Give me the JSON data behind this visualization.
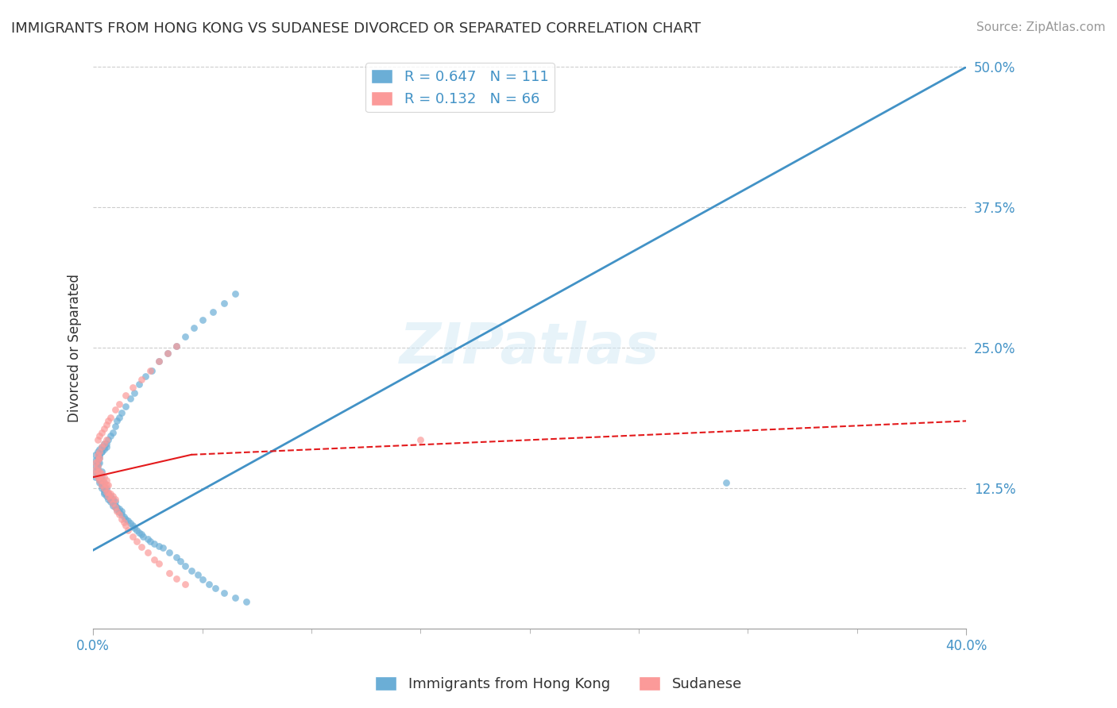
{
  "title": "IMMIGRANTS FROM HONG KONG VS SUDANESE DIVORCED OR SEPARATED CORRELATION CHART",
  "source": "Source: ZipAtlas.com",
  "xlabel": "",
  "ylabel": "Divorced or Separated",
  "xlim": [
    0.0,
    0.4
  ],
  "ylim": [
    0.0,
    0.5
  ],
  "xticks": [
    0.0,
    0.4
  ],
  "xtick_labels": [
    "0.0%",
    "40.0%"
  ],
  "ytick_positions": [
    0.0,
    0.125,
    0.25,
    0.375,
    0.5
  ],
  "ytick_labels": [
    "",
    "12.5%",
    "25.0%",
    "37.5%",
    "50.0%"
  ],
  "legend_r1": "R = 0.647",
  "legend_n1": "N = 111",
  "legend_r2": "R = 0.132",
  "legend_n2": "N = 66",
  "legend_label1": "Immigrants from Hong Kong",
  "legend_label2": "Sudanese",
  "blue_color": "#6baed6",
  "pink_color": "#fb9a99",
  "line_blue": "#4292c6",
  "line_pink": "#e31a1c",
  "watermark": "ZIPatlas",
  "blue_scatter_x": [
    0.001,
    0.001,
    0.002,
    0.002,
    0.002,
    0.003,
    0.003,
    0.003,
    0.003,
    0.003,
    0.004,
    0.004,
    0.004,
    0.004,
    0.004,
    0.004,
    0.005,
    0.005,
    0.005,
    0.005,
    0.005,
    0.006,
    0.006,
    0.006,
    0.006,
    0.007,
    0.007,
    0.007,
    0.008,
    0.008,
    0.008,
    0.009,
    0.009,
    0.009,
    0.01,
    0.01,
    0.01,
    0.011,
    0.011,
    0.012,
    0.012,
    0.013,
    0.013,
    0.014,
    0.015,
    0.016,
    0.017,
    0.018,
    0.019,
    0.02,
    0.021,
    0.022,
    0.023,
    0.025,
    0.026,
    0.028,
    0.03,
    0.032,
    0.035,
    0.038,
    0.04,
    0.042,
    0.045,
    0.048,
    0.05,
    0.053,
    0.056,
    0.06,
    0.065,
    0.07,
    0.001,
    0.001,
    0.002,
    0.002,
    0.003,
    0.003,
    0.004,
    0.004,
    0.005,
    0.005,
    0.006,
    0.007,
    0.008,
    0.009,
    0.01,
    0.011,
    0.012,
    0.013,
    0.015,
    0.017,
    0.019,
    0.021,
    0.024,
    0.027,
    0.03,
    0.034,
    0.038,
    0.042,
    0.046,
    0.05,
    0.055,
    0.06,
    0.065,
    0.001,
    0.002,
    0.003,
    0.003,
    0.004,
    0.005,
    0.006,
    0.29
  ],
  "blue_scatter_y": [
    0.14,
    0.135,
    0.138,
    0.142,
    0.145,
    0.13,
    0.132,
    0.134,
    0.136,
    0.148,
    0.125,
    0.128,
    0.13,
    0.132,
    0.135,
    0.14,
    0.12,
    0.122,
    0.124,
    0.126,
    0.13,
    0.118,
    0.12,
    0.122,
    0.125,
    0.115,
    0.118,
    0.12,
    0.113,
    0.115,
    0.118,
    0.11,
    0.112,
    0.115,
    0.108,
    0.11,
    0.113,
    0.106,
    0.108,
    0.104,
    0.107,
    0.102,
    0.105,
    0.1,
    0.098,
    0.096,
    0.094,
    0.092,
    0.09,
    0.088,
    0.086,
    0.084,
    0.082,
    0.08,
    0.078,
    0.076,
    0.074,
    0.072,
    0.068,
    0.064,
    0.06,
    0.056,
    0.052,
    0.048,
    0.044,
    0.04,
    0.036,
    0.032,
    0.028,
    0.024,
    0.15,
    0.155,
    0.152,
    0.158,
    0.155,
    0.16,
    0.158,
    0.162,
    0.16,
    0.165,
    0.162,
    0.168,
    0.172,
    0.175,
    0.18,
    0.185,
    0.188,
    0.192,
    0.198,
    0.205,
    0.21,
    0.218,
    0.225,
    0.23,
    0.238,
    0.245,
    0.252,
    0.26,
    0.268,
    0.275,
    0.282,
    0.29,
    0.298,
    0.145,
    0.148,
    0.152,
    0.155,
    0.158,
    0.162,
    0.165,
    0.13
  ],
  "pink_scatter_x": [
    0.001,
    0.001,
    0.001,
    0.002,
    0.002,
    0.002,
    0.002,
    0.003,
    0.003,
    0.003,
    0.003,
    0.004,
    0.004,
    0.004,
    0.005,
    0.005,
    0.005,
    0.006,
    0.006,
    0.006,
    0.007,
    0.007,
    0.007,
    0.008,
    0.008,
    0.009,
    0.009,
    0.01,
    0.01,
    0.011,
    0.012,
    0.013,
    0.014,
    0.015,
    0.016,
    0.018,
    0.02,
    0.022,
    0.025,
    0.028,
    0.03,
    0.035,
    0.038,
    0.042,
    0.002,
    0.003,
    0.004,
    0.005,
    0.006,
    0.007,
    0.008,
    0.01,
    0.012,
    0.015,
    0.018,
    0.022,
    0.026,
    0.03,
    0.034,
    0.038,
    0.002,
    0.003,
    0.004,
    0.005,
    0.006,
    0.15
  ],
  "pink_scatter_y": [
    0.138,
    0.142,
    0.148,
    0.135,
    0.14,
    0.145,
    0.15,
    0.132,
    0.135,
    0.14,
    0.152,
    0.128,
    0.132,
    0.138,
    0.125,
    0.13,
    0.135,
    0.122,
    0.128,
    0.132,
    0.118,
    0.122,
    0.128,
    0.115,
    0.12,
    0.112,
    0.118,
    0.108,
    0.115,
    0.105,
    0.102,
    0.098,
    0.095,
    0.092,
    0.088,
    0.082,
    0.078,
    0.073,
    0.068,
    0.062,
    0.058,
    0.05,
    0.045,
    0.04,
    0.168,
    0.172,
    0.175,
    0.178,
    0.182,
    0.185,
    0.188,
    0.195,
    0.2,
    0.208,
    0.215,
    0.222,
    0.23,
    0.238,
    0.245,
    0.252,
    0.155,
    0.158,
    0.162,
    0.165,
    0.168,
    0.168
  ]
}
